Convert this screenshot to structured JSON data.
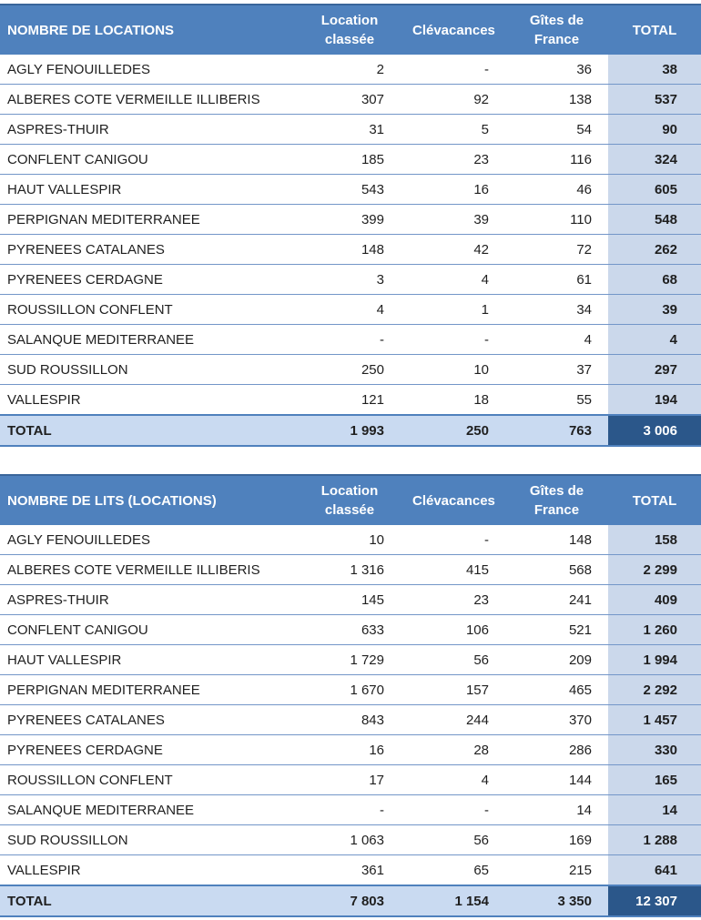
{
  "colors": {
    "header_bg": "#4F81BD",
    "header_text": "#FFFFFF",
    "header_top_line": "#39659A",
    "total_column_bg": "#CBD8EB",
    "total_row_bg": "#C9DAF1",
    "grand_total_bg": "#2B578A",
    "grand_total_text": "#FFFFFF",
    "row_line": "#7396C8",
    "strong_line": "#4F81BD",
    "text": "#1F1F1F"
  },
  "chart_data": [
    {
      "type": "table",
      "title": "NOMBRE DE LOCATIONS",
      "columns": [
        "Location classée",
        "Clévacances",
        "Gîtes de France",
        "TOTAL"
      ],
      "rows": [
        {
          "label": "AGLY FENOUILLEDES",
          "values": [
            "2",
            "-",
            "36",
            "38"
          ]
        },
        {
          "label": "ALBERES COTE VERMEILLE ILLIBERIS",
          "values": [
            "307",
            "92",
            "138",
            "537"
          ]
        },
        {
          "label": "ASPRES-THUIR",
          "values": [
            "31",
            "5",
            "54",
            "90"
          ]
        },
        {
          "label": "CONFLENT CANIGOU",
          "values": [
            "185",
            "23",
            "116",
            "324"
          ]
        },
        {
          "label": "HAUT VALLESPIR",
          "values": [
            "543",
            "16",
            "46",
            "605"
          ]
        },
        {
          "label": "PERPIGNAN MEDITERRANEE",
          "values": [
            "399",
            "39",
            "110",
            "548"
          ]
        },
        {
          "label": "PYRENEES CATALANES",
          "values": [
            "148",
            "42",
            "72",
            "262"
          ]
        },
        {
          "label": "PYRENEES CERDAGNE",
          "values": [
            "3",
            "4",
            "61",
            "68"
          ]
        },
        {
          "label": "ROUSSILLON CONFLENT",
          "values": [
            "4",
            "1",
            "34",
            "39"
          ]
        },
        {
          "label": "SALANQUE MEDITERRANEE",
          "values": [
            "-",
            "-",
            "4",
            "4"
          ]
        },
        {
          "label": "SUD ROUSSILLON",
          "values": [
            "250",
            "10",
            "37",
            "297"
          ]
        },
        {
          "label": "VALLESPIR",
          "values": [
            "121",
            "18",
            "55",
            "194"
          ]
        }
      ],
      "total_row": {
        "label": "TOTAL",
        "values": [
          "1 993",
          "250",
          "763",
          "3 006"
        ]
      }
    },
    {
      "type": "table",
      "title": "NOMBRE DE LITS (LOCATIONS)",
      "columns": [
        "Location classée",
        "Clévacances",
        "Gîtes de France",
        "TOTAL"
      ],
      "rows": [
        {
          "label": "AGLY FENOUILLEDES",
          "values": [
            "10",
            "-",
            "148",
            "158"
          ]
        },
        {
          "label": "ALBERES COTE VERMEILLE ILLIBERIS",
          "values": [
            "1 316",
            "415",
            "568",
            "2 299"
          ]
        },
        {
          "label": "ASPRES-THUIR",
          "values": [
            "145",
            "23",
            "241",
            "409"
          ]
        },
        {
          "label": "CONFLENT CANIGOU",
          "values": [
            "633",
            "106",
            "521",
            "1 260"
          ]
        },
        {
          "label": "HAUT VALLESPIR",
          "values": [
            "1 729",
            "56",
            "209",
            "1 994"
          ]
        },
        {
          "label": "PERPIGNAN MEDITERRANEE",
          "values": [
            "1 670",
            "157",
            "465",
            "2 292"
          ]
        },
        {
          "label": "PYRENEES CATALANES",
          "values": [
            "843",
            "244",
            "370",
            "1 457"
          ]
        },
        {
          "label": "PYRENEES CERDAGNE",
          "values": [
            "16",
            "28",
            "286",
            "330"
          ]
        },
        {
          "label": "ROUSSILLON CONFLENT",
          "values": [
            "17",
            "4",
            "144",
            "165"
          ]
        },
        {
          "label": "SALANQUE MEDITERRANEE",
          "values": [
            "-",
            "-",
            "14",
            "14"
          ]
        },
        {
          "label": "SUD ROUSSILLON",
          "values": [
            "1 063",
            "56",
            "169",
            "1 288"
          ]
        },
        {
          "label": "VALLESPIR",
          "values": [
            "361",
            "65",
            "215",
            "641"
          ]
        }
      ],
      "total_row": {
        "label": "TOTAL",
        "values": [
          "7 803",
          "1 154",
          "3 350",
          "12 307"
        ]
      }
    }
  ]
}
